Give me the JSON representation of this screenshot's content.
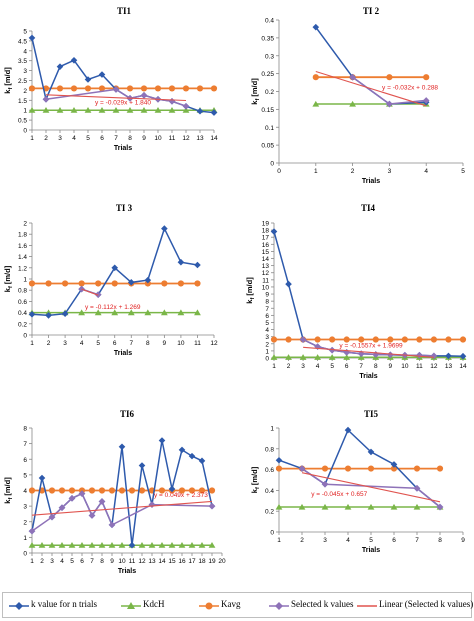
{
  "colors": {
    "k_value": "#2E5AAC",
    "kdch": "#7AB648",
    "kavg": "#ED7D31",
    "selected": "#8E72B8",
    "linear": "#E0544F",
    "equation": "#E02020"
  },
  "legend": {
    "items": [
      {
        "label": "k value for n trials",
        "color": "#2E5AAC",
        "marker": "diamond"
      },
      {
        "label": "KdcH",
        "color": "#7AB648",
        "marker": "triangle"
      },
      {
        "label": "Kavg",
        "color": "#ED7D31",
        "marker": "circle"
      },
      {
        "label": "Selected k values",
        "color": "#8E72B8",
        "marker": "diamond"
      },
      {
        "label": "Linear (Selected k values)",
        "color": "#E0544F",
        "marker": "line"
      }
    ]
  },
  "chart_data": [
    {
      "type": "line",
      "title": "TI1",
      "xlabel": "Trials",
      "ylabel": "k_f [m/d]",
      "xlim": [
        1,
        14
      ],
      "ylim": [
        0,
        5
      ],
      "x_ticks": [
        1,
        2,
        3,
        4,
        5,
        6,
        7,
        8,
        9,
        10,
        11,
        12,
        13,
        14
      ],
      "y_ticks": [
        0,
        0.5,
        1,
        1.5,
        2,
        2.5,
        3,
        3.5,
        4,
        4.5,
        5
      ],
      "y_tick_labels": [
        "0",
        "0.5",
        "1",
        "1.5",
        "2",
        "2.5",
        "3",
        "3.5",
        "4",
        "4.5",
        "5"
      ],
      "equation": "y = -0.029x + 1.840",
      "equation_pos": [
        5.5,
        1.3
      ],
      "series": [
        {
          "key": "k",
          "x": [
            1,
            2,
            3,
            4,
            5,
            6,
            7,
            8,
            9,
            10,
            11,
            12,
            13,
            14
          ],
          "y": [
            4.65,
            1.55,
            3.2,
            3.52,
            2.55,
            2.8,
            2.05,
            1.6,
            1.75,
            1.55,
            1.45,
            1.2,
            0.95,
            0.88
          ]
        },
        {
          "key": "kdch",
          "x": [
            1,
            2,
            3,
            4,
            5,
            6,
            7,
            8,
            9,
            10,
            11,
            12,
            13,
            14
          ],
          "y": [
            1,
            1,
            1,
            1,
            1,
            1,
            1,
            1,
            1,
            1,
            1,
            1,
            1,
            1
          ]
        },
        {
          "key": "kavg",
          "x": [
            1,
            2,
            3,
            4,
            5,
            6,
            7,
            8,
            9,
            10,
            11,
            12,
            13,
            14
          ],
          "y": [
            2.1,
            2.1,
            2.1,
            2.1,
            2.1,
            2.1,
            2.1,
            2.1,
            2.1,
            2.1,
            2.1,
            2.1,
            2.1,
            2.1
          ]
        },
        {
          "key": "sel",
          "x": [
            2,
            7,
            8,
            9,
            10,
            11,
            12
          ],
          "y": [
            1.55,
            2.05,
            1.6,
            1.75,
            1.55,
            1.45,
            1.2
          ]
        },
        {
          "key": "lin",
          "x": [
            2,
            12
          ],
          "y": [
            1.78,
            1.49
          ]
        }
      ]
    },
    {
      "type": "line",
      "title": "TI 2",
      "xlabel": "Trials",
      "ylabel": "k_f [m/d]",
      "xlim": [
        0,
        5
      ],
      "ylim": [
        0,
        0.4
      ],
      "x_ticks": [
        0,
        1,
        2,
        3,
        4,
        5
      ],
      "y_ticks": [
        0,
        0.05,
        0.1,
        0.15,
        0.2,
        0.25,
        0.3,
        0.35,
        0.4
      ],
      "y_tick_labels": [
        "0",
        "0.05",
        "0.1",
        "0.15",
        "0.2",
        "0.25",
        "0.3",
        "0.35",
        "0.4"
      ],
      "equation": "y = -0.032x + 0.288",
      "equation_pos": [
        2.8,
        0.205
      ],
      "series": [
        {
          "key": "k",
          "x": [
            1,
            2,
            3,
            4
          ],
          "y": [
            0.38,
            0.24,
            0.165,
            0.17
          ]
        },
        {
          "key": "kdch",
          "x": [
            1,
            2,
            3,
            4
          ],
          "y": [
            0.165,
            0.165,
            0.165,
            0.165
          ]
        },
        {
          "key": "kavg",
          "x": [
            1,
            2,
            3,
            4
          ],
          "y": [
            0.24,
            0.24,
            0.24,
            0.24
          ]
        },
        {
          "key": "sel",
          "x": [
            2,
            3,
            4
          ],
          "y": [
            0.24,
            0.165,
            0.175
          ]
        },
        {
          "key": "lin",
          "x": [
            1,
            4
          ],
          "y": [
            0.256,
            0.16
          ]
        }
      ]
    },
    {
      "type": "line",
      "title": "TI 3",
      "xlabel": "Trials",
      "ylabel": "k_f [m/d]",
      "xlim": [
        1,
        12
      ],
      "ylim": [
        0,
        2
      ],
      "x_ticks": [
        1,
        2,
        3,
        4,
        5,
        6,
        7,
        8,
        9,
        10,
        11,
        12
      ],
      "y_ticks": [
        0,
        0.2,
        0.4,
        0.6,
        0.8,
        1,
        1.2,
        1.4,
        1.6,
        1.8,
        2
      ],
      "y_tick_labels": [
        "0",
        "0.2",
        "0.4",
        "0.6",
        "0.8",
        "1",
        "1.2",
        "1.4",
        "1.6",
        "1.8",
        "2"
      ],
      "equation": "y = -0.112x + 1.269",
      "equation_pos": [
        4.2,
        0.46
      ],
      "series": [
        {
          "key": "k",
          "x": [
            1,
            2,
            3,
            4,
            5,
            6,
            7,
            8,
            9,
            10,
            11
          ],
          "y": [
            0.37,
            0.35,
            0.38,
            0.82,
            0.72,
            1.2,
            0.94,
            0.98,
            1.9,
            1.3,
            1.25
          ]
        },
        {
          "key": "kdch",
          "x": [
            1,
            2,
            3,
            4,
            5,
            6,
            7,
            8,
            9,
            10,
            11
          ],
          "y": [
            0.4,
            0.4,
            0.4,
            0.4,
            0.4,
            0.4,
            0.4,
            0.4,
            0.4,
            0.4,
            0.4
          ]
        },
        {
          "key": "kavg",
          "x": [
            1,
            2,
            3,
            4,
            5,
            6,
            7,
            8,
            9,
            10,
            11
          ],
          "y": [
            0.92,
            0.92,
            0.92,
            0.92,
            0.92,
            0.92,
            0.92,
            0.92,
            0.92,
            0.92,
            0.92
          ]
        },
        {
          "key": "sel",
          "x": [
            4,
            5
          ],
          "y": [
            0.82,
            0.72
          ]
        },
        {
          "key": "lin",
          "x": [
            4,
            5
          ],
          "y": [
            0.82,
            0.71
          ]
        }
      ]
    },
    {
      "type": "line",
      "title": "TI4",
      "xlabel": "Trials",
      "ylabel": "k_f [m/d]",
      "xlim": [
        1,
        14
      ],
      "ylim": [
        0,
        19
      ],
      "x_ticks": [
        1,
        2,
        3,
        4,
        5,
        6,
        7,
        8,
        9,
        10,
        11,
        12,
        13,
        14
      ],
      "y_ticks": [
        0,
        1,
        2,
        3,
        4,
        5,
        6,
        7,
        8,
        9,
        10,
        11,
        12,
        13,
        14,
        15,
        16,
        17,
        18,
        19
      ],
      "y_tick_labels": [
        "0",
        "1",
        "2",
        "3",
        "4",
        "5",
        "6",
        "7",
        "8",
        "9",
        "10",
        "11",
        "12",
        "13",
        "14",
        "15",
        "16",
        "17",
        "18",
        "19"
      ],
      "equation": "y = -0.1557x + 1.9699",
      "equation_pos": [
        5.5,
        1.45
      ],
      "series": [
        {
          "key": "k",
          "x": [
            1,
            2,
            3,
            4,
            5,
            6,
            7,
            8,
            9,
            10,
            11,
            12,
            13,
            14
          ],
          "y": [
            17.8,
            10.4,
            2.6,
            1.6,
            1.1,
            0.8,
            0.6,
            0.5,
            0.45,
            0.4,
            0.4,
            0.3,
            0.3,
            0.25
          ]
        },
        {
          "key": "kdch",
          "x": [
            1,
            2,
            3,
            4,
            5,
            6,
            7,
            8,
            9,
            10,
            11,
            12,
            13,
            14
          ],
          "y": [
            0.1,
            0.1,
            0.1,
            0.1,
            0.1,
            0.1,
            0.1,
            0.1,
            0.1,
            0.1,
            0.1,
            0.1,
            0.1,
            0.1
          ]
        },
        {
          "key": "kavg",
          "x": [
            1,
            2,
            3,
            4,
            5,
            6,
            7,
            8,
            9,
            10,
            11,
            12,
            13,
            14
          ],
          "y": [
            2.6,
            2.6,
            2.6,
            2.6,
            2.6,
            2.6,
            2.6,
            2.6,
            2.6,
            2.6,
            2.6,
            2.6,
            2.6,
            2.6
          ]
        },
        {
          "key": "sel",
          "x": [
            3,
            4,
            5,
            6,
            7,
            8,
            9,
            10,
            11,
            12
          ],
          "y": [
            2.6,
            1.6,
            1.1,
            0.8,
            0.6,
            0.5,
            0.45,
            0.4,
            0.4,
            0.3
          ]
        },
        {
          "key": "lin",
          "x": [
            3,
            12
          ],
          "y": [
            1.5,
            0.1
          ]
        }
      ]
    },
    {
      "type": "line",
      "title": "TI6",
      "xlabel": "Trials",
      "ylabel": "k_f [m/d]",
      "xlim": [
        1,
        20
      ],
      "ylim": [
        0,
        8
      ],
      "x_ticks": [
        1,
        2,
        3,
        4,
        5,
        6,
        7,
        8,
        9,
        10,
        11,
        12,
        13,
        14,
        15,
        16,
        17,
        18,
        19,
        20
      ],
      "y_ticks": [
        0,
        1,
        2,
        3,
        4,
        5,
        6,
        7,
        8
      ],
      "y_tick_labels": [
        "0",
        "1",
        "2",
        "3",
        "4",
        "5",
        "6",
        "7",
        "8"
      ],
      "equation": "y = 0.049x + 2.373",
      "equation_pos": [
        13.2,
        3.6
      ],
      "series": [
        {
          "key": "k",
          "x": [
            1,
            2,
            3,
            4,
            5,
            6,
            7,
            8,
            9,
            10,
            11,
            12,
            13,
            14,
            15,
            16,
            17,
            18,
            19
          ],
          "y": [
            1.4,
            4.8,
            2.3,
            2.9,
            3.5,
            3.8,
            2.4,
            3.3,
            1.8,
            6.8,
            0.5,
            5.6,
            3.1,
            7.2,
            4.1,
            6.6,
            6.2,
            5.9,
            3.0
          ]
        },
        {
          "key": "kdch",
          "x": [
            1,
            2,
            3,
            4,
            5,
            6,
            7,
            8,
            9,
            10,
            11,
            12,
            13,
            14,
            15,
            16,
            17,
            18,
            19
          ],
          "y": [
            0.5,
            0.5,
            0.5,
            0.5,
            0.5,
            0.5,
            0.5,
            0.5,
            0.5,
            0.5,
            0.5,
            0.5,
            0.5,
            0.5,
            0.5,
            0.5,
            0.5,
            0.5,
            0.5
          ]
        },
        {
          "key": "kavg",
          "x": [
            1,
            2,
            3,
            4,
            5,
            6,
            7,
            8,
            9,
            10,
            11,
            12,
            13,
            14,
            15,
            16,
            17,
            18,
            19
          ],
          "y": [
            4.0,
            4.0,
            4.0,
            4.0,
            4.0,
            4.0,
            4.0,
            4.0,
            4.0,
            4.0,
            4.0,
            4.0,
            4.0,
            4.0,
            4.0,
            4.0,
            4.0,
            4.0,
            4.0
          ]
        },
        {
          "key": "sel",
          "x": [
            1,
            3,
            4,
            5,
            6,
            7,
            8,
            9,
            13,
            19
          ],
          "y": [
            1.4,
            2.3,
            2.9,
            3.5,
            3.8,
            2.4,
            3.3,
            1.8,
            3.1,
            3.0
          ]
        },
        {
          "key": "lin",
          "x": [
            1,
            19
          ],
          "y": [
            2.42,
            3.3
          ]
        }
      ]
    },
    {
      "type": "line",
      "title": "TI5",
      "xlabel": "Trials",
      "ylabel": "k_f [m/d]",
      "xlim": [
        1,
        9
      ],
      "ylim": [
        0,
        1
      ],
      "x_ticks": [
        1,
        2,
        3,
        4,
        5,
        6,
        7,
        8,
        9
      ],
      "y_ticks": [
        0,
        0.2,
        0.4,
        0.6,
        0.8,
        1
      ],
      "y_tick_labels": [
        "0",
        "0.2",
        "0.4",
        "0.6",
        "0.8",
        "1"
      ],
      "equation": "y = -0.045x + 0.657",
      "equation_pos": [
        2.4,
        0.345
      ],
      "series": [
        {
          "key": "k",
          "x": [
            1,
            2,
            3,
            4,
            5,
            6,
            7,
            8
          ],
          "y": [
            0.69,
            0.61,
            0.46,
            0.98,
            0.77,
            0.65,
            0.42,
            0.24
          ]
        },
        {
          "key": "kdch",
          "x": [
            1,
            2,
            3,
            4,
            5,
            6,
            7,
            8
          ],
          "y": [
            0.24,
            0.24,
            0.24,
            0.24,
            0.24,
            0.24,
            0.24,
            0.24
          ]
        },
        {
          "key": "kavg",
          "x": [
            1,
            2,
            3,
            4,
            5,
            6,
            7,
            8
          ],
          "y": [
            0.61,
            0.61,
            0.61,
            0.61,
            0.61,
            0.61,
            0.61,
            0.61
          ]
        },
        {
          "key": "sel",
          "x": [
            2,
            3,
            7,
            8
          ],
          "y": [
            0.61,
            0.46,
            0.42,
            0.24
          ]
        },
        {
          "key": "lin",
          "x": [
            2,
            8
          ],
          "y": [
            0.57,
            0.29
          ]
        }
      ]
    }
  ]
}
